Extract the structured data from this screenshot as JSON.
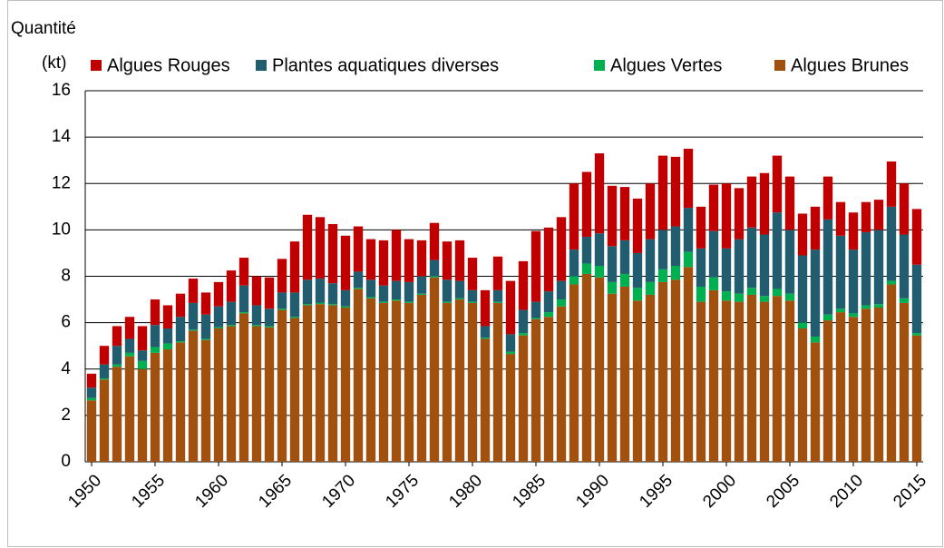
{
  "chart_data": {
    "type": "stacked_bar",
    "y_label_line1": "Quantité",
    "y_label_line2": "(kt)",
    "x": [
      1950,
      1951,
      1952,
      1953,
      1954,
      1955,
      1956,
      1957,
      1958,
      1959,
      1960,
      1961,
      1962,
      1963,
      1964,
      1965,
      1966,
      1967,
      1968,
      1969,
      1970,
      1971,
      1972,
      1973,
      1974,
      1975,
      1976,
      1977,
      1978,
      1979,
      1980,
      1981,
      1982,
      1983,
      1984,
      1985,
      1986,
      1987,
      1988,
      1989,
      1990,
      1991,
      1992,
      1993,
      1994,
      1995,
      1996,
      1997,
      1998,
      1999,
      2000,
      2001,
      2002,
      2003,
      2004,
      2005,
      2006,
      2007,
      2008,
      2009,
      2010,
      2011,
      2012,
      2013,
      2014,
      2015
    ],
    "xlim": [
      1949.5,
      2015.5
    ],
    "xticks": [
      1950,
      1955,
      1960,
      1965,
      1970,
      1975,
      1980,
      1985,
      1990,
      1995,
      2000,
      2005,
      2010,
      2015
    ],
    "ylim": [
      0,
      16
    ],
    "yticks": [
      0,
      2,
      4,
      6,
      8,
      10,
      12,
      14,
      16
    ],
    "grid": true,
    "legend": "top",
    "series": [
      {
        "name": "Algues Rouges",
        "color": "#c00000",
        "values": [
          0.6,
          0.8,
          0.85,
          0.95,
          1.05,
          1.1,
          1.0,
          1.0,
          1.05,
          0.95,
          1.05,
          1.35,
          1.2,
          1.25,
          1.35,
          1.45,
          2.2,
          2.8,
          2.65,
          2.55,
          2.35,
          1.95,
          1.75,
          1.95,
          2.2,
          1.85,
          1.55,
          1.6,
          1.65,
          1.75,
          1.4,
          1.55,
          1.45,
          2.3,
          2.1,
          3.05,
          2.75,
          2.75,
          2.85,
          2.8,
          3.45,
          2.6,
          2.3,
          2.35,
          2.4,
          3.2,
          3.0,
          2.55,
          1.8,
          2.0,
          2.8,
          2.2,
          2.2,
          2.65,
          2.45,
          2.3,
          1.8,
          1.85,
          1.85,
          1.45,
          1.6,
          1.3,
          1.3,
          1.95,
          2.2,
          2.4
        ]
      },
      {
        "name": "Plantes aquatiques diverses",
        "color": "#215d6e",
        "values": [
          0.45,
          0.6,
          0.8,
          0.6,
          0.45,
          0.95,
          0.65,
          1.05,
          1.15,
          1.05,
          0.9,
          1.0,
          1.15,
          0.85,
          0.75,
          0.7,
          1.05,
          1.05,
          1.05,
          0.9,
          0.7,
          0.7,
          0.75,
          0.7,
          0.8,
          0.85,
          0.75,
          0.7,
          0.95,
          0.75,
          0.5,
          0.5,
          0.5,
          0.75,
          1.0,
          0.7,
          0.9,
          0.8,
          1.15,
          1.15,
          1.4,
          1.55,
          1.45,
          1.5,
          1.85,
          1.7,
          1.7,
          1.9,
          1.65,
          2.0,
          1.85,
          2.35,
          2.6,
          2.65,
          3.3,
          2.75,
          2.9,
          3.75,
          4.1,
          3.15,
          2.75,
          3.15,
          3.2,
          3.2,
          2.75,
          2.95
        ]
      },
      {
        "name": "Algues Vertes",
        "color": "#00b050",
        "values": [
          0.1,
          0.05,
          0.1,
          0.15,
          0.35,
          0.25,
          0.25,
          0.05,
          0.05,
          0.05,
          0.05,
          0.05,
          0.05,
          0.05,
          0.05,
          0.05,
          0.05,
          0.05,
          0.05,
          0.05,
          0.05,
          0.05,
          0.05,
          0.05,
          0.05,
          0.05,
          0.05,
          0.05,
          0.05,
          0.05,
          0.05,
          0.05,
          0.05,
          0.1,
          0.1,
          0.05,
          0.2,
          0.3,
          0.35,
          0.45,
          0.5,
          0.5,
          0.55,
          0.55,
          0.55,
          0.55,
          0.6,
          0.65,
          0.65,
          0.55,
          0.4,
          0.35,
          0.3,
          0.25,
          0.3,
          0.3,
          0.25,
          0.25,
          0.25,
          0.15,
          0.15,
          0.15,
          0.15,
          0.15,
          0.2,
          0.1
        ]
      },
      {
        "name": "Algues Brunes",
        "color": "#a0500f",
        "values": [
          2.65,
          3.55,
          4.1,
          4.55,
          4.0,
          4.7,
          4.85,
          5.15,
          5.65,
          5.25,
          5.75,
          5.85,
          6.4,
          5.85,
          5.8,
          6.55,
          6.2,
          6.75,
          6.8,
          6.75,
          6.65,
          7.45,
          7.05,
          6.85,
          6.95,
          6.85,
          7.2,
          7.95,
          6.85,
          7.0,
          6.85,
          5.3,
          6.85,
          4.65,
          5.45,
          6.15,
          6.25,
          6.7,
          7.65,
          8.1,
          7.95,
          7.25,
          7.55,
          6.95,
          7.2,
          7.75,
          7.85,
          8.4,
          6.9,
          7.4,
          6.95,
          6.9,
          7.2,
          6.9,
          7.15,
          6.95,
          5.75,
          5.15,
          6.1,
          6.45,
          6.25,
          6.6,
          6.65,
          7.65,
          6.85,
          5.45
        ]
      }
    ]
  }
}
